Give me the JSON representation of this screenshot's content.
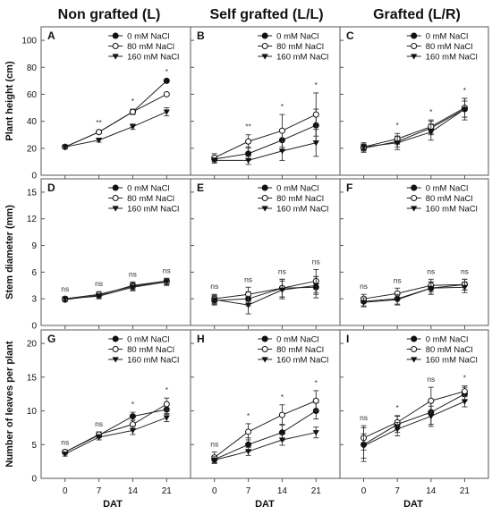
{
  "column_titles": [
    "Non grafted (L)",
    "Self grafted (L/L)",
    "Grafted (L/R)"
  ],
  "x_label": "DAT",
  "legend_labels": [
    "0 mM NaCl",
    "80 mM NaCl",
    "160 mM NaCl"
  ],
  "chart_data": [
    {
      "panel": "A",
      "row": 0,
      "col": 0,
      "type": "line",
      "x": [
        0,
        7,
        14,
        21
      ],
      "ylabel": "Plant height (cm)",
      "yticks": [
        0,
        20,
        40,
        60,
        80,
        100
      ],
      "ylim": [
        0,
        110
      ],
      "series": [
        {
          "name": "0 mM NaCl",
          "values": [
            21,
            32,
            47,
            70
          ],
          "err": [
            1,
            1,
            1.5,
            1
          ]
        },
        {
          "name": "80 mM NaCl",
          "values": [
            21,
            32,
            47,
            60
          ],
          "err": [
            1,
            1,
            2,
            1
          ]
        },
        {
          "name": "160 mM NaCl",
          "values": [
            21,
            26,
            36,
            47
          ],
          "err": [
            1,
            1.5,
            2,
            3
          ]
        }
      ],
      "annotations": [
        "",
        "**",
        "*",
        "*"
      ]
    },
    {
      "panel": "B",
      "row": 0,
      "col": 1,
      "type": "line",
      "x": [
        0,
        7,
        14,
        21
      ],
      "ylabel": "",
      "yticks": [
        0,
        20,
        40,
        60,
        80,
        100
      ],
      "ylim": [
        0,
        110
      ],
      "series": [
        {
          "name": "0 mM NaCl",
          "values": [
            12,
            16,
            26,
            37
          ],
          "err": [
            2,
            5,
            8,
            12
          ]
        },
        {
          "name": "80 mM NaCl",
          "values": [
            13,
            25,
            33,
            45
          ],
          "err": [
            3,
            5,
            12,
            16
          ]
        },
        {
          "name": "160 mM NaCl",
          "values": [
            11,
            11,
            18,
            24
          ],
          "err": [
            2,
            3,
            7,
            10
          ]
        }
      ],
      "annotations": [
        "",
        "**",
        "*",
        "*"
      ]
    },
    {
      "panel": "C",
      "row": 0,
      "col": 2,
      "type": "line",
      "x": [
        0,
        7,
        14,
        21
      ],
      "ylabel": "",
      "yticks": [
        0,
        20,
        40,
        60,
        80,
        100
      ],
      "ylim": [
        0,
        110
      ],
      "series": [
        {
          "name": "0 mM NaCl",
          "values": [
            20,
            25,
            35,
            49
          ],
          "err": [
            3,
            4,
            5,
            6
          ]
        },
        {
          "name": "80 mM NaCl",
          "values": [
            21,
            27,
            36,
            50
          ],
          "err": [
            3,
            4,
            5,
            7
          ]
        },
        {
          "name": "160 mM NaCl",
          "values": [
            21,
            24,
            32,
            49
          ],
          "err": [
            3,
            5,
            6,
            8
          ]
        }
      ],
      "annotations": [
        "",
        "*",
        "*",
        "*"
      ]
    },
    {
      "panel": "D",
      "row": 1,
      "col": 0,
      "type": "line",
      "x": [
        0,
        7,
        14,
        21
      ],
      "ylabel": "Stem diameter (mm)",
      "yticks": [
        0,
        3,
        6,
        9,
        12,
        15
      ],
      "ylim": [
        0,
        16.5
      ],
      "series": [
        {
          "name": "0 mM NaCl",
          "values": [
            2.9,
            3.4,
            4.5,
            5.0
          ],
          "err": [
            0.2,
            0.3,
            0.4,
            0.3
          ]
        },
        {
          "name": "80 mM NaCl",
          "values": [
            3.0,
            3.5,
            4.4,
            4.9
          ],
          "err": [
            0.2,
            0.3,
            0.4,
            0.3
          ]
        },
        {
          "name": "160 mM NaCl",
          "values": [
            3.0,
            3.3,
            4.3,
            4.9
          ],
          "err": [
            0.2,
            0.3,
            0.4,
            0.4
          ]
        }
      ],
      "annotations": [
        "ns",
        "ns",
        "ns",
        "ns"
      ]
    },
    {
      "panel": "E",
      "row": 1,
      "col": 1,
      "type": "line",
      "x": [
        0,
        7,
        14,
        21
      ],
      "ylabel": "",
      "yticks": [
        0,
        3,
        6,
        9,
        12,
        15
      ],
      "ylim": [
        0,
        16.5
      ],
      "series": [
        {
          "name": "0 mM NaCl",
          "values": [
            2.8,
            3.0,
            4.2,
            4.3
          ],
          "err": [
            0.5,
            0.8,
            1.0,
            1.2
          ]
        },
        {
          "name": "80 mM NaCl",
          "values": [
            3.0,
            3.5,
            4.2,
            5.0
          ],
          "err": [
            0.5,
            0.8,
            1.0,
            1.3
          ]
        },
        {
          "name": "160 mM NaCl",
          "values": [
            2.9,
            2.3,
            4.0,
            4.5
          ],
          "err": [
            0.5,
            1.0,
            1.0,
            1.0
          ]
        }
      ],
      "annotations": [
        "ns",
        "ns",
        "ns",
        "ns"
      ]
    },
    {
      "panel": "F",
      "row": 1,
      "col": 2,
      "type": "line",
      "x": [
        0,
        7,
        14,
        21
      ],
      "ylabel": "",
      "yticks": [
        0,
        3,
        6,
        9,
        12,
        15
      ],
      "ylim": [
        0,
        16.5
      ],
      "series": [
        {
          "name": "0 mM NaCl",
          "values": [
            2.7,
            3.0,
            4.2,
            4.6
          ],
          "err": [
            0.5,
            0.6,
            0.7,
            0.6
          ]
        },
        {
          "name": "80 mM NaCl",
          "values": [
            3.0,
            3.6,
            4.5,
            4.6
          ],
          "err": [
            0.5,
            0.6,
            0.7,
            0.6
          ]
        },
        {
          "name": "160 mM NaCl",
          "values": [
            2.6,
            2.9,
            4.2,
            4.3
          ],
          "err": [
            0.5,
            0.6,
            0.7,
            0.6
          ]
        }
      ],
      "annotations": [
        "ns",
        "ns",
        "ns",
        "ns"
      ]
    },
    {
      "panel": "G",
      "row": 2,
      "col": 0,
      "type": "line",
      "x": [
        0,
        7,
        14,
        21
      ],
      "ylabel": "Number of leaves per plant",
      "yticks": [
        0,
        5,
        10,
        15,
        20
      ],
      "ylim": [
        0,
        22
      ],
      "series": [
        {
          "name": "0 mM NaCl",
          "values": [
            3.9,
            6.4,
            9.2,
            10.2
          ],
          "err": [
            0.3,
            0.4,
            0.6,
            0.7
          ]
        },
        {
          "name": "80 mM NaCl",
          "values": [
            3.9,
            6.5,
            8.0,
            11.0
          ],
          "err": [
            0.3,
            0.4,
            0.6,
            0.9
          ]
        },
        {
          "name": "160 mM NaCl",
          "values": [
            3.6,
            6.1,
            7.1,
            9.0
          ],
          "err": [
            0.3,
            0.4,
            0.6,
            0.6
          ]
        }
      ],
      "annotations": [
        "ns",
        "ns",
        "*",
        "*"
      ]
    },
    {
      "panel": "H",
      "row": 2,
      "col": 1,
      "type": "line",
      "x": [
        0,
        7,
        14,
        21
      ],
      "ylabel": "",
      "yticks": [
        0,
        5,
        10,
        15,
        20
      ],
      "ylim": [
        0,
        22
      ],
      "series": [
        {
          "name": "0 mM NaCl",
          "values": [
            2.8,
            5.0,
            6.8,
            10.0
          ],
          "err": [
            0.5,
            1.0,
            1.2,
            1.2
          ]
        },
        {
          "name": "80 mM NaCl",
          "values": [
            3.1,
            6.9,
            9.4,
            11.5
          ],
          "err": [
            0.8,
            1.2,
            1.5,
            1.5
          ]
        },
        {
          "name": "160 mM NaCl",
          "values": [
            2.7,
            4.0,
            5.7,
            6.8
          ],
          "err": [
            0.5,
            0.6,
            0.8,
            0.8
          ]
        }
      ],
      "annotations": [
        "ns",
        "*",
        "*",
        "*"
      ]
    },
    {
      "panel": "I",
      "row": 2,
      "col": 2,
      "type": "line",
      "x": [
        0,
        7,
        14,
        21
      ],
      "ylabel": "",
      "yticks": [
        0,
        5,
        10,
        15,
        20
      ],
      "ylim": [
        0,
        22
      ],
      "series": [
        {
          "name": "0 mM NaCl",
          "values": [
            5.0,
            8.0,
            9.8,
            12.5
          ],
          "err": [
            2.5,
            1.2,
            1.8,
            1.0
          ]
        },
        {
          "name": "80 mM NaCl",
          "values": [
            6.0,
            8.3,
            11.5,
            12.9
          ],
          "err": [
            1.8,
            1.0,
            2.0,
            0.8
          ]
        },
        {
          "name": "160 mM NaCl",
          "values": [
            4.8,
            7.3,
            9.2,
            11.4
          ],
          "err": [
            1.8,
            1.0,
            1.5,
            0.8
          ]
        }
      ],
      "annotations": [
        "ns",
        "*",
        "ns",
        "*"
      ]
    }
  ]
}
